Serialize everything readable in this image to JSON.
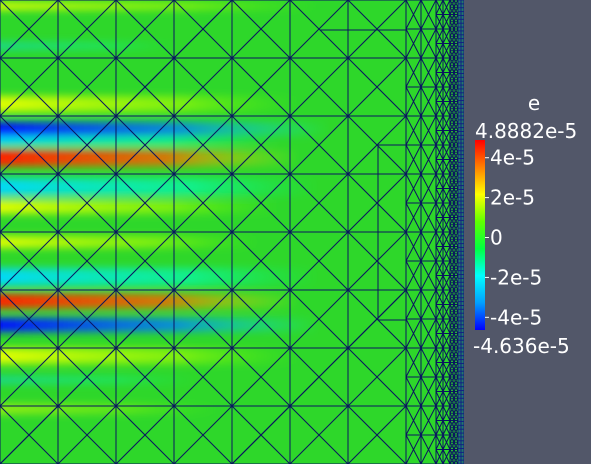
{
  "colorbar": {
    "title": "e",
    "max_label": "4.8882e-5",
    "min_label": "-4.636e-5",
    "min": -4.636e-05,
    "max": 4.8882e-05,
    "ticks": [
      {
        "value": 4e-05,
        "label": "4e-5"
      },
      {
        "value": 2e-05,
        "label": "2e-5"
      },
      {
        "value": 0,
        "label": "0"
      },
      {
        "value": -2e-05,
        "label": "-2e-5"
      },
      {
        "value": -4e-05,
        "label": "-4e-5"
      }
    ],
    "colormap": [
      "#0000ff",
      "#00a0ff",
      "#00ffff",
      "#00ff40",
      "#60ff00",
      "#ffff00",
      "#ff8000",
      "#ff0000"
    ]
  },
  "colors": {
    "background": "#525769",
    "field_base": "#2ed72a",
    "mesh_lines": "#0a1460"
  }
}
